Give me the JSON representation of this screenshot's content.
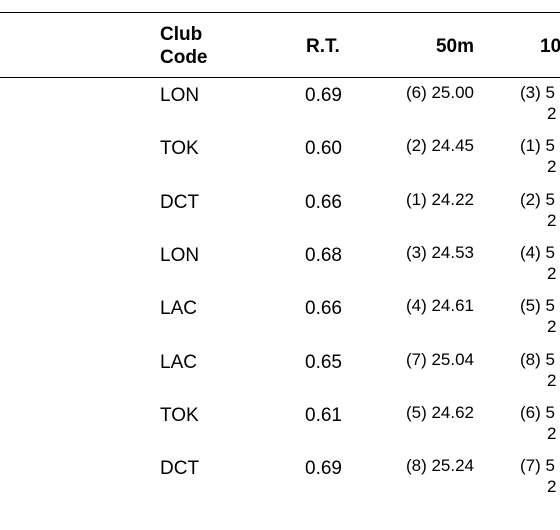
{
  "table": {
    "headers": {
      "club_code": "Club Code",
      "rt": "R.T.",
      "m50": "50m",
      "m100": "10"
    },
    "rows": [
      {
        "code": "LON",
        "rt": "0.69",
        "split50": "(6) 25.00",
        "split100": "(3) 5",
        "cum100": "2"
      },
      {
        "code": "TOK",
        "rt": "0.60",
        "split50": "(2) 24.45",
        "split100": "(1) 5",
        "cum100": "2"
      },
      {
        "code": "DCT",
        "rt": "0.66",
        "split50": "(1) 24.22",
        "split100": "(2) 5",
        "cum100": "2"
      },
      {
        "code": "LON",
        "rt": "0.68",
        "split50": "(3) 24.53",
        "split100": "(4) 5",
        "cum100": "2"
      },
      {
        "code": "LAC",
        "rt": "0.66",
        "split50": "(4) 24.61",
        "split100": "(5) 5",
        "cum100": "2"
      },
      {
        "code": "LAC",
        "rt": "0.65",
        "split50": "(7) 25.04",
        "split100": "(8) 5",
        "cum100": "2"
      },
      {
        "code": "TOK",
        "rt": "0.61",
        "split50": "(5) 24.62",
        "split100": "(6) 5",
        "cum100": "2"
      },
      {
        "code": "DCT",
        "rt": "0.69",
        "split50": "(8) 25.24",
        "split100": "(7) 5",
        "cum100": "2"
      }
    ]
  }
}
